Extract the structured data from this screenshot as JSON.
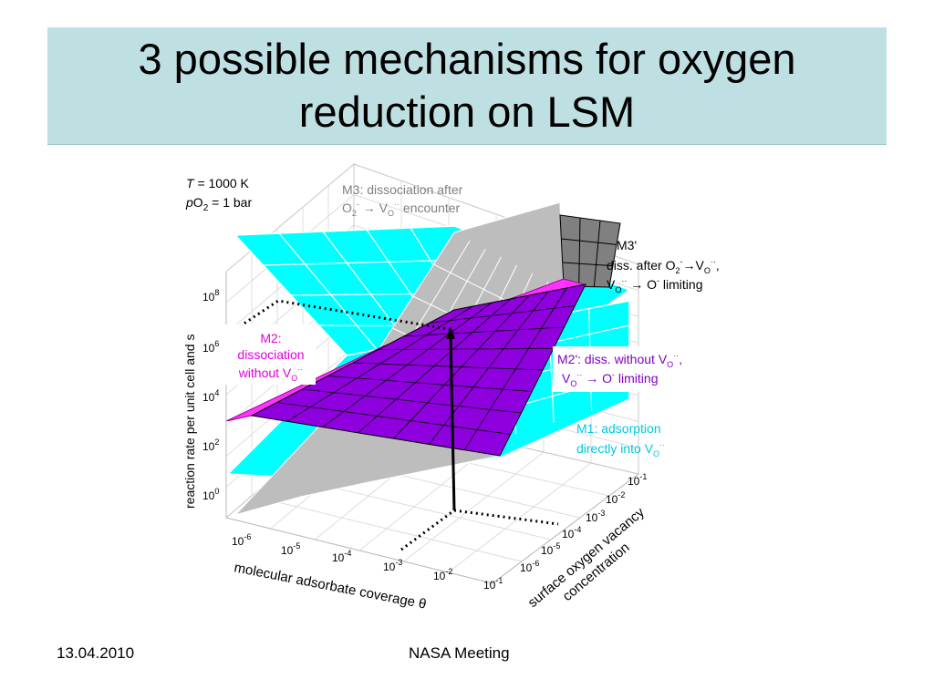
{
  "slide": {
    "title": "3 possible mechanisms for oxygen reduction on LSM",
    "footer_date": "13.04.2010",
    "footer_event": "NASA Meeting"
  },
  "chart_data": {
    "type": "surface3d",
    "conditions": {
      "temperature": {
        "symbol": "T",
        "rest": " = 1000 K"
      },
      "pressure": {
        "symbol": "p",
        "base": "O",
        "sub": "2",
        "rest": " = 1 bar"
      }
    },
    "z_axis": {
      "label": "reaction rate per unit cell and s",
      "ticks": [
        {
          "base": "10",
          "exp": "0"
        },
        {
          "base": "10",
          "exp": "2"
        },
        {
          "base": "10",
          "exp": "4"
        },
        {
          "base": "10",
          "exp": "6"
        },
        {
          "base": "10",
          "exp": "8"
        }
      ]
    },
    "x_axis": {
      "label": "molecular adsorbate coverage θ",
      "ticks": [
        {
          "base": "10",
          "exp": "-6"
        },
        {
          "base": "10",
          "exp": "-5"
        },
        {
          "base": "10",
          "exp": "-4"
        },
        {
          "base": "10",
          "exp": "-3"
        },
        {
          "base": "10",
          "exp": "-2"
        },
        {
          "base": "10",
          "exp": "-1"
        }
      ]
    },
    "y_axis": {
      "label_line1": "surface oxygen vacancy",
      "label_line2": "concentration",
      "ticks": [
        {
          "base": "10",
          "exp": "-6"
        },
        {
          "base": "10",
          "exp": "-5"
        },
        {
          "base": "10",
          "exp": "-4"
        },
        {
          "base": "10",
          "exp": "-3"
        },
        {
          "base": "10",
          "exp": "-2"
        },
        {
          "base": "10",
          "exp": "-1"
        }
      ]
    },
    "annotations": {
      "m3_line1": "M3: dissociation after",
      "m3_line2_a": "O",
      "m3_line2_sub": "2",
      "m3_line2_sup": "-",
      "m3_line2_b": " → V",
      "m3_line2_sub2": "O",
      "m3_line2_sup2": "··",
      "m3_line2_c": " encounter",
      "m3p_line1": "M3'",
      "m3p_line2_a": "diss. after O",
      "m3p_line2_sub": "2",
      "m3p_line2_sup": "-",
      "m3p_line2_b": "→V",
      "m3p_line2_sub2": "O",
      "m3p_line2_sup2": "··",
      "m3p_line2_c": ",",
      "m3p_line3_a": "V",
      "m3p_line3_sub": "O",
      "m3p_line3_sup": "··",
      "m3p_line3_b": " → O",
      "m3p_line3_sup2": "-",
      "m3p_line3_c": " limiting",
      "m2_line1": "M2:",
      "m2_line2": "dissociation",
      "m2_line3_a": "without V",
      "m2_line3_sub": "O",
      "m2_line3_sup": "··",
      "m2p_line1_a": "M2': diss. without V",
      "m2p_line1_sub": "O",
      "m2p_line1_sup": "··",
      "m2p_line1_b": ",",
      "m2p_line2_a": "V",
      "m2p_line2_sub": "O",
      "m2p_line2_sup": "··",
      "m2p_line2_b": " → O",
      "m2p_line2_sup2": "-",
      "m2p_line2_c": " limiting",
      "m1_line1": "M1: adsorption",
      "m1_line2_a": "directly into V",
      "m1_line2_sub": "O",
      "m1_line2_sup": "··"
    },
    "surfaces": [
      {
        "name": "M1",
        "color": "#00ffff"
      },
      {
        "name": "M2",
        "color": "#ff33ff"
      },
      {
        "name": "M2'",
        "color": "#8f00df"
      },
      {
        "name": "M3",
        "color": "#bdbdbd"
      },
      {
        "name": "M3'",
        "color": "#808080"
      }
    ],
    "colors": {
      "m3_label": "#7f7f7f",
      "m2_label": "#e000e0",
      "m2p_label": "#8000c0",
      "m1_label": "#00c8e0"
    }
  }
}
